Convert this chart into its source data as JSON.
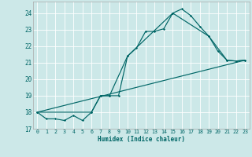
{
  "xlabel": "Humidex (Indice chaleur)",
  "background_color": "#cce8e8",
  "grid_color": "#aacccc",
  "line_color": "#006666",
  "xlim": [
    -0.5,
    23.5
  ],
  "ylim": [
    17,
    24.7
  ],
  "yticks": [
    17,
    18,
    19,
    20,
    21,
    22,
    23,
    24
  ],
  "xticks": [
    0,
    1,
    2,
    3,
    4,
    5,
    6,
    7,
    8,
    9,
    10,
    11,
    12,
    13,
    14,
    15,
    16,
    17,
    18,
    19,
    20,
    21,
    22,
    23
  ],
  "series1_x": [
    0,
    1,
    2,
    3,
    4,
    5,
    6,
    7,
    8,
    9,
    10,
    11,
    12,
    13,
    14,
    15,
    16,
    17,
    18,
    19,
    20,
    21,
    22,
    23
  ],
  "series1_y": [
    18.0,
    17.6,
    17.6,
    17.5,
    17.8,
    17.5,
    18.0,
    19.0,
    19.0,
    19.0,
    21.4,
    21.9,
    22.9,
    22.9,
    23.05,
    24.0,
    24.25,
    23.85,
    23.2,
    22.6,
    21.7,
    21.15,
    21.1,
    21.15
  ],
  "series2_x": [
    0,
    6,
    7,
    8,
    10,
    15,
    19,
    21,
    22,
    23
  ],
  "series2_y": [
    18.0,
    18.0,
    19.0,
    19.0,
    21.4,
    24.0,
    22.6,
    21.15,
    21.1,
    21.15
  ],
  "series3_x": [
    0,
    23
  ],
  "series3_y": [
    18.0,
    21.15
  ]
}
